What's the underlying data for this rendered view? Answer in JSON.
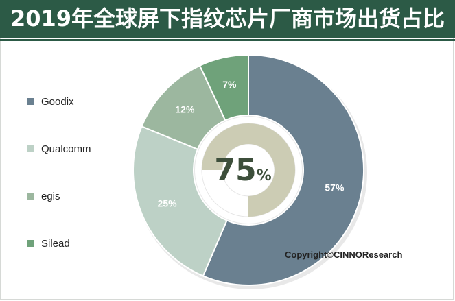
{
  "title": "2019年全球屏下指纹芯片厂商市场出货占比",
  "copyright": "Copyright©CINNOResearch",
  "colors": {
    "title_bg": "#2c5a46",
    "title_text": "#ffffff"
  },
  "chart_data": {
    "type": "pie",
    "style": "donut-with-inner-ring",
    "title": "2019年全球屏下指纹芯片厂商市场出货占比",
    "legend_position": "left",
    "series": [
      {
        "name": "Goodix",
        "value": 57,
        "label": "57%",
        "color": "#6a8090"
      },
      {
        "name": "Qualcomm",
        "value": 25,
        "label": "25%",
        "color": "#bdd1c6"
      },
      {
        "name": "egis",
        "value": 12,
        "label": "12%",
        "color": "#9cb79f"
      },
      {
        "name": "Silead",
        "value": 7,
        "label": "7%",
        "color": "#6fa27a"
      }
    ],
    "inner_ring": {
      "value": 75,
      "label_number": "75",
      "label_unit": "%",
      "fill_color": "#ccccb4",
      "track_color": "#ffffff"
    }
  }
}
